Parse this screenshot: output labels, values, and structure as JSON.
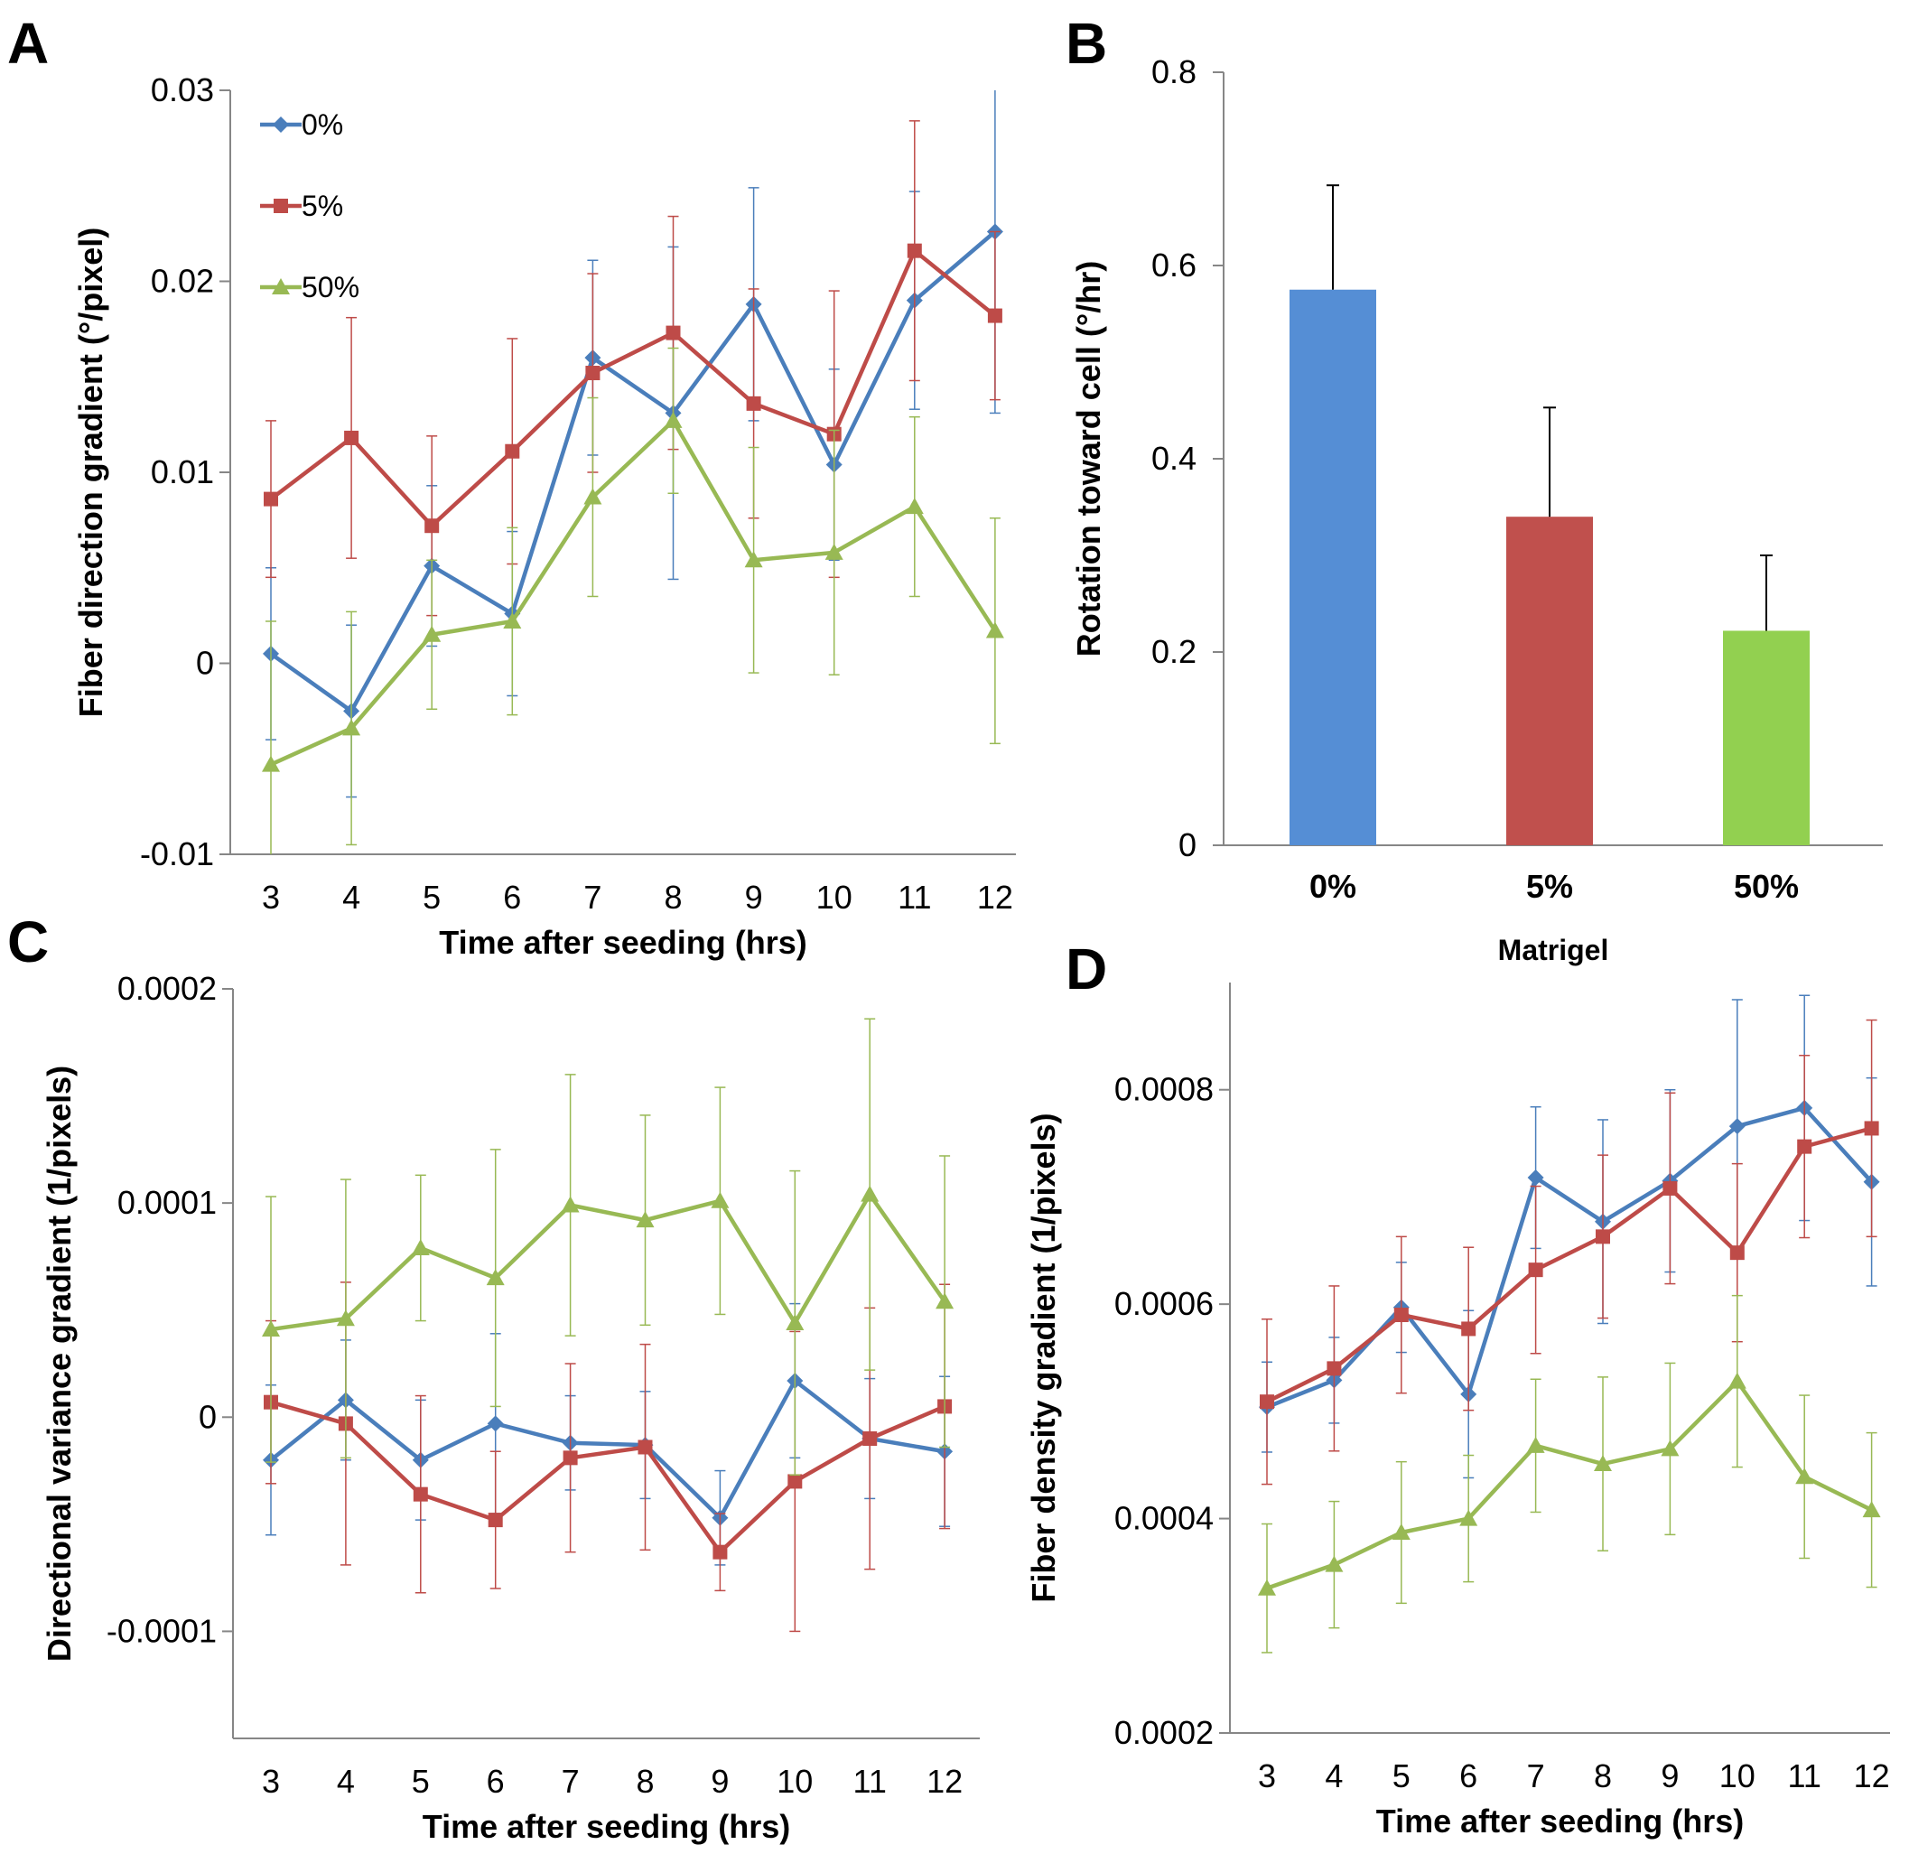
{
  "colors": {
    "0%": "#4a7ebb",
    "5%": "#be4b48",
    "50%": "#98b954",
    "bar_0%": "#558ed5",
    "bar_5%": "#c0504d",
    "bar_50%": "#92d050",
    "axis": "#868686"
  },
  "chart_data": [
    {
      "panel": "A",
      "type": "line",
      "xlabel": "Time after seeding (hrs)",
      "ylabel": "Fiber direction gradient (°/pixel)",
      "x": [
        3,
        4,
        5,
        6,
        7,
        8,
        9,
        10,
        11,
        12
      ],
      "ylim": [
        -0.01,
        0.03
      ],
      "yticks": [
        -0.01,
        0,
        0.01,
        0.02,
        0.03
      ],
      "ytick_labels": [
        "-0.01",
        "0",
        "0.01",
        "0.02",
        "0.03"
      ],
      "legend": "top-left",
      "grid": false,
      "series": [
        {
          "name": "0%",
          "marker": "diamond",
          "values": [
            0.0005,
            -0.0025,
            0.0051,
            0.0026,
            0.016,
            0.0131,
            0.0188,
            0.0104,
            0.019,
            0.0226
          ],
          "errors": [
            0.0045,
            0.0045,
            0.0042,
            0.0043,
            0.0051,
            0.0087,
            0.0061,
            0.005,
            0.0057,
            0.0095
          ]
        },
        {
          "name": "5%",
          "marker": "square",
          "values": [
            0.0086,
            0.0118,
            0.0072,
            0.0111,
            0.0152,
            0.0173,
            0.0136,
            0.012,
            0.0216,
            0.0182
          ],
          "errors": [
            0.0041,
            0.0063,
            0.0047,
            0.0059,
            0.0052,
            0.0061,
            0.006,
            0.0075,
            0.0068,
            0.0044
          ]
        },
        {
          "name": "50%",
          "marker": "triangle",
          "values": [
            -0.0053,
            -0.0034,
            0.0015,
            0.0022,
            0.0087,
            0.0127,
            0.0054,
            0.0058,
            0.0082,
            0.0017
          ],
          "errors": [
            0.0075,
            0.0061,
            0.0039,
            0.0049,
            0.0052,
            0.0038,
            0.0059,
            0.0064,
            0.0047,
            0.0059
          ]
        }
      ]
    },
    {
      "panel": "B",
      "type": "bar",
      "xlabel": "Matrigel",
      "ylabel": "Rotation toward cell (°/hr)",
      "categories": [
        "0%",
        "5%",
        "50%"
      ],
      "values": [
        0.575,
        0.34,
        0.222
      ],
      "errors": [
        0.108,
        0.113,
        0.078
      ],
      "ylim": [
        0,
        0.8
      ],
      "yticks": [
        0,
        0.2,
        0.4,
        0.6,
        0.8
      ],
      "ytick_labels": [
        "0",
        "0.2",
        "0.4",
        "0.6",
        "0.8"
      ],
      "grid": false
    },
    {
      "panel": "C",
      "type": "line",
      "xlabel": "Time after seeding (hrs)",
      "ylabel": "Directional variance gradient (1/pixels)",
      "x": [
        3,
        4,
        5,
        6,
        7,
        8,
        9,
        10,
        11,
        12
      ],
      "ylim": [
        -0.00015,
        0.0002
      ],
      "yticks": [
        -0.0001,
        0,
        0.0001,
        0.0002
      ],
      "ytick_labels": [
        "-0.0001",
        "0",
        "0.0001",
        "0.0002"
      ],
      "grid": false,
      "series": [
        {
          "name": "0%",
          "marker": "diamond",
          "values": [
            -2e-05,
            8e-06,
            -2e-05,
            -3e-06,
            -1.2e-05,
            -1.3e-05,
            -4.7e-05,
            1.7e-05,
            -1e-05,
            -1.6e-05
          ],
          "errors": [
            3.5e-05,
            2.8e-05,
            2.8e-05,
            4.2e-05,
            2.2e-05,
            2.5e-05,
            2.2e-05,
            3.6e-05,
            2.8e-05,
            3.5e-05
          ]
        },
        {
          "name": "5%",
          "marker": "square",
          "values": [
            7e-06,
            -3e-06,
            -3.6e-05,
            -4.8e-05,
            -1.9e-05,
            -1.4e-05,
            -6.3e-05,
            -3e-05,
            -1e-05,
            5e-06
          ],
          "errors": [
            3.8e-05,
            6.6e-05,
            4.6e-05,
            3.2e-05,
            4.4e-05,
            4.8e-05,
            1.8e-05,
            7e-05,
            6.1e-05,
            5.7e-05
          ]
        },
        {
          "name": "50%",
          "marker": "triangle",
          "values": [
            4.1e-05,
            4.6e-05,
            7.9e-05,
            6.5e-05,
            9.9e-05,
            9.2e-05,
            0.000101,
            4.4e-05,
            0.000104,
            5.4e-05
          ],
          "errors": [
            6.2e-05,
            6.5e-05,
            3.4e-05,
            6e-05,
            6.1e-05,
            4.9e-05,
            5.3e-05,
            7.1e-05,
            8.2e-05,
            6.8e-05
          ]
        }
      ]
    },
    {
      "panel": "D",
      "type": "line",
      "xlabel": "Time after seeding (hrs)",
      "ylabel": "Fiber density gradient (1/pixels)",
      "x": [
        3,
        4,
        5,
        6,
        7,
        8,
        9,
        10,
        11,
        12
      ],
      "ylim": [
        0.0002,
        0.0009
      ],
      "yticks": [
        0.0002,
        0.0004,
        0.0006,
        0.0008
      ],
      "ytick_labels": [
        "0.0002",
        "0.0004",
        "0.0006",
        "0.0008"
      ],
      "grid": false,
      "series": [
        {
          "name": "0%",
          "marker": "diamond",
          "values": [
            0.000504,
            0.000529,
            0.000597,
            0.000516,
            0.000718,
            0.000677,
            0.000715,
            0.000766,
            0.000783,
            0.000714
          ],
          "errors": [
            4.2e-05,
            4e-05,
            4.2e-05,
            7.8e-05,
            6.6e-05,
            9.5e-05,
            8.5e-05,
            0.000118,
            0.000105,
            9.7e-05
          ]
        },
        {
          "name": "5%",
          "marker": "square",
          "values": [
            0.000509,
            0.00054,
            0.00059,
            0.000577,
            0.000632,
            0.000663,
            0.000708,
            0.000648,
            0.000747,
            0.000764
          ],
          "errors": [
            7.7e-05,
            7.7e-05,
            7.3e-05,
            7.6e-05,
            7.8e-05,
            7.6e-05,
            8.9e-05,
            8.3e-05,
            8.5e-05,
            0.000101
          ]
        },
        {
          "name": "50%",
          "marker": "triangle",
          "values": [
            0.000335,
            0.000357,
            0.000387,
            0.0004,
            0.000468,
            0.000451,
            0.000465,
            0.000528,
            0.000439,
            0.000408
          ],
          "errors": [
            6e-05,
            5.9e-05,
            6.6e-05,
            5.9e-05,
            6.2e-05,
            8.1e-05,
            8e-05,
            8e-05,
            7.6e-05,
            7.2e-05
          ]
        }
      ]
    }
  ]
}
